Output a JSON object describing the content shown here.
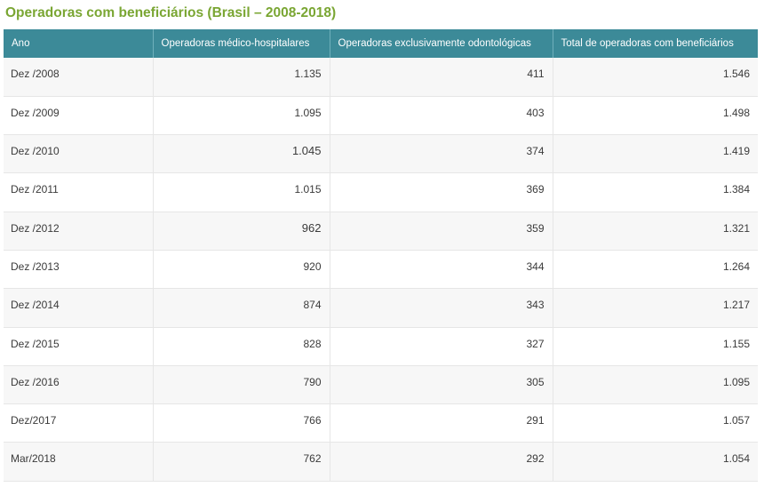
{
  "title": "Operadoras com beneficiários (Brasil – 2008-2018)",
  "table": {
    "headers": [
      "Ano",
      "Operadoras médico-hospitalares",
      "Operadoras exclusivamente odontológicas",
      "Total de operadoras com beneficiários"
    ],
    "rows": [
      {
        "ano": "Dez /2008",
        "medico": "1.135",
        "odonto": "411",
        "total": "1.546"
      },
      {
        "ano": "Dez /2009",
        "medico": "1.095",
        "odonto": "403",
        "total": "1.498"
      },
      {
        "ano": "Dez /2010",
        "medico": "1.045",
        "odonto": "374",
        "total": "1.419"
      },
      {
        "ano": "Dez /2011",
        "medico": "1.015",
        "odonto": "369",
        "total": "1.384"
      },
      {
        "ano": "Dez /2012",
        "medico": "962",
        "odonto": "359",
        "total": "1.321"
      },
      {
        "ano": "Dez /2013",
        "medico": "920",
        "odonto": "344",
        "total": "1.264"
      },
      {
        "ano": "Dez /2014",
        "medico": "874",
        "odonto": "343",
        "total": "1.217"
      },
      {
        "ano": "Dez /2015",
        "medico": "828",
        "odonto": "327",
        "total": "1.155"
      },
      {
        "ano": "Dez /2016",
        "medico": "790",
        "odonto": "305",
        "total": "1.095"
      },
      {
        "ano": "Dez/2017",
        "medico": "766",
        "odonto": "291",
        "total": "1.057"
      },
      {
        "ano": "Mar/2018",
        "medico": "762",
        "odonto": "292",
        "total": "1.054"
      }
    ]
  },
  "colors": {
    "title": "#7aa633",
    "header_bg": "#3c8a98",
    "header_text": "#ffffff",
    "row_alt": "#f7f7f7"
  }
}
